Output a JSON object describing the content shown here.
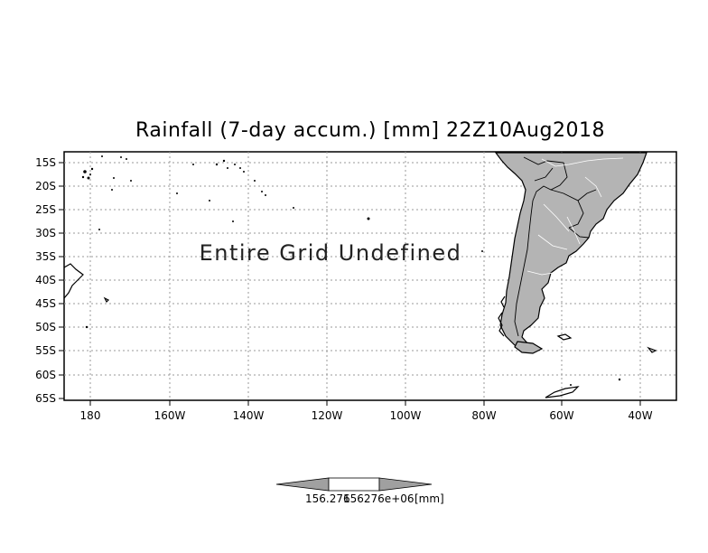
{
  "title": "Rainfall (7-day accum.) [mm] 22Z10Aug2018",
  "overlay_text": "Entire Grid Undefined",
  "lat_ticks": [
    "15S",
    "20S",
    "25S",
    "30S",
    "35S",
    "40S",
    "45S",
    "50S",
    "55S",
    "60S",
    "65S"
  ],
  "lon_ticks": [
    "180",
    "160W",
    "140W",
    "120W",
    "100W",
    "80W",
    "60W",
    "40W"
  ],
  "colorbar": {
    "left_value": "156.276",
    "center_value": "156276e+06",
    "unit": "[mm]"
  },
  "colors": {
    "land": "#b4b4b4",
    "grid": "#9a9a9a"
  }
}
